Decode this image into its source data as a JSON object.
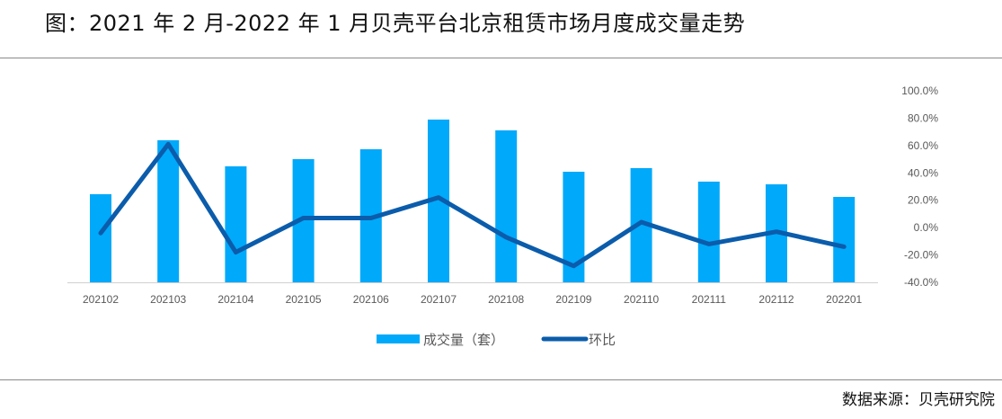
{
  "title": "图：2021 年 2 月-2022 年 1 月贝壳平台北京租赁市场月度成交量走势",
  "source": "数据来源：贝壳研究院",
  "colors": {
    "bar": "#00A9FA",
    "line": "#0B5CAB",
    "axis": "#d0d0d0"
  },
  "chart_data": {
    "type": "bar+line",
    "categories": [
      "202102",
      "202103",
      "202104",
      "202105",
      "202106",
      "202107",
      "202108",
      "202109",
      "202110",
      "202111",
      "202112",
      "202201"
    ],
    "series": [
      {
        "name": "成交量（套）",
        "type": "bar",
        "axis": "left-hidden",
        "values": [
          98,
          158,
          129,
          137,
          148,
          181,
          169,
          123,
          127,
          112,
          109,
          95
        ]
      },
      {
        "name": "环比",
        "type": "line",
        "axis": "right",
        "values": [
          -4,
          61,
          -18,
          7,
          7,
          22,
          -7,
          -28,
          4,
          -12,
          -3,
          -14
        ]
      }
    ],
    "right_axis": {
      "range": [
        -40,
        100
      ],
      "ticks": [
        "100.0%",
        "80.0%",
        "60.0%",
        "40.0%",
        "20.0%",
        "0.0%",
        "-20.0%",
        "-40.0%"
      ]
    },
    "legend": {
      "placement": "bottom",
      "entries": [
        "成交量（套）",
        "环比"
      ]
    },
    "grid": false
  }
}
